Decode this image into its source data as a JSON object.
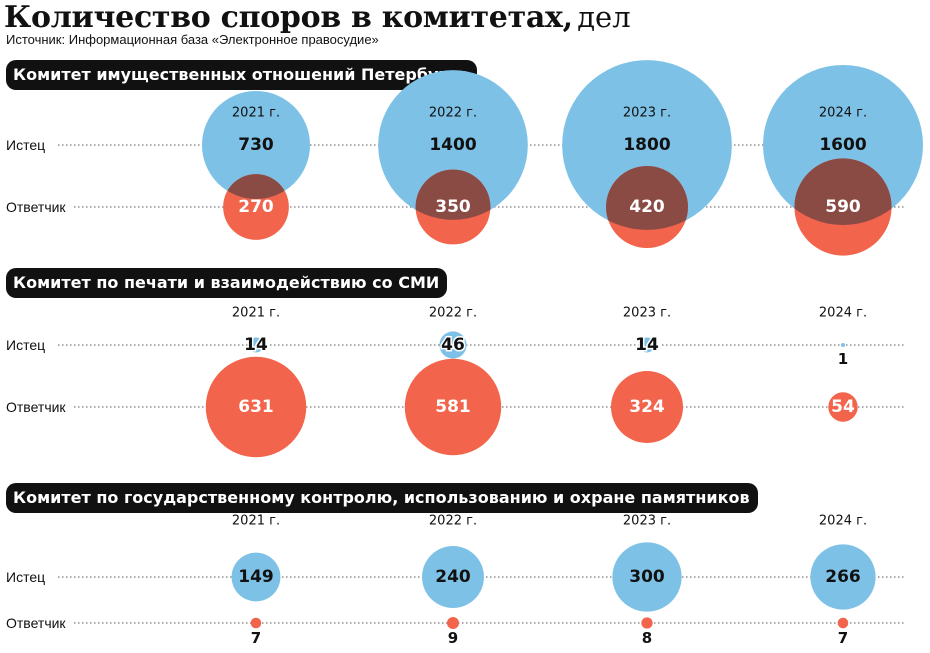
{
  "header": {
    "title": "Количество споров в комитетах,",
    "unit": "дел",
    "source": "Источник: Информационная база «Электронное правосудие»"
  },
  "row_labels": {
    "plaintiff": "Истец",
    "defendant": "Ответчик"
  },
  "colors": {
    "plaintiff": "#7dc2e6",
    "defendant": "#f2644c",
    "overlap": "#8a4b45"
  },
  "chart_data": [
    {
      "type": "bubble",
      "title": "Комитет имущественных отношений Петербурга",
      "categories": [
        "2021 г.",
        "2022 г.",
        "2023 г.",
        "2024 г."
      ],
      "series": [
        {
          "name": "Истец",
          "values": [
            730,
            1400,
            1800,
            1600
          ]
        },
        {
          "name": "Ответчик",
          "values": [
            270,
            350,
            420,
            590
          ]
        }
      ]
    },
    {
      "type": "bubble",
      "title": "Комитет по печати и взаимодействию со СМИ",
      "categories": [
        "2021 г.",
        "2022 г.",
        "2023 г.",
        "2024 г."
      ],
      "series": [
        {
          "name": "Истец",
          "values": [
            14,
            46,
            14,
            1
          ]
        },
        {
          "name": "Ответчик",
          "values": [
            631,
            581,
            324,
            54
          ]
        }
      ]
    },
    {
      "type": "bubble",
      "title": "Комитет по государственному контролю, использованию и охране памятников",
      "categories": [
        "2021 г.",
        "2022 г.",
        "2023 г.",
        "2024 г."
      ],
      "series": [
        {
          "name": "Истец",
          "values": [
            149,
            240,
            300,
            266
          ]
        },
        {
          "name": "Ответчик",
          "values": [
            7,
            9,
            8,
            7
          ]
        }
      ]
    }
  ]
}
